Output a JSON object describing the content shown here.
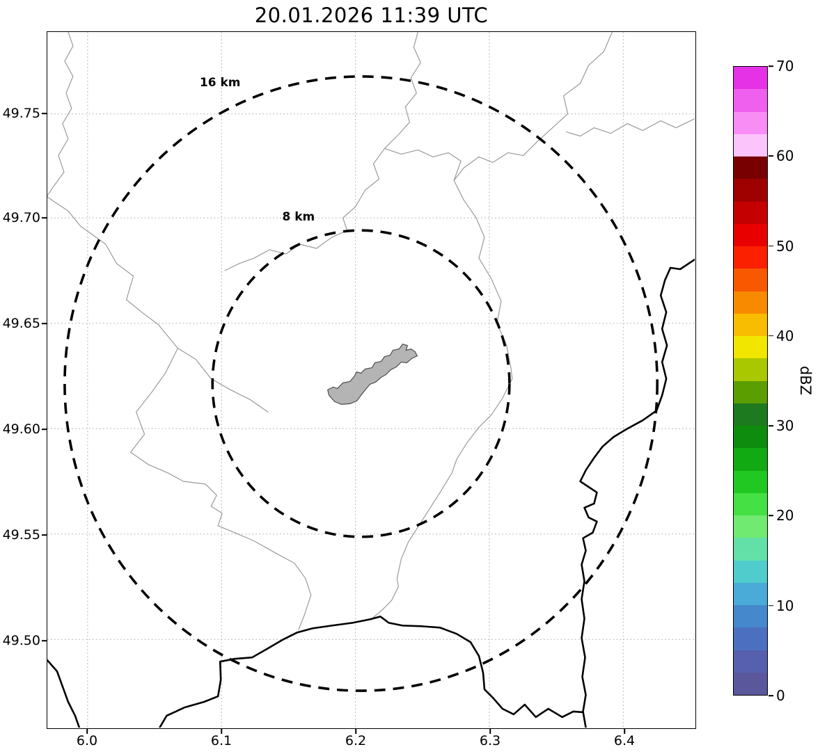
{
  "title": "20.01.2026 11:39 UTC",
  "axes": {
    "x_tick_labels": [
      "6.0",
      "6.1",
      "6.2",
      "6.3",
      "6.4"
    ],
    "y_tick_labels": [
      "49.75",
      "49.70",
      "49.65",
      "49.60",
      "49.55",
      "49.50"
    ]
  },
  "map": {
    "range_rings": [
      {
        "label": "16 km"
      },
      {
        "label": "8 km"
      }
    ],
    "features": {
      "urban_area_fill": "#b4b4b4",
      "boundary_line_color": "#9a9a9a",
      "national_border_color": "#000000",
      "range_ring_color": "#000000"
    }
  },
  "colorbar": {
    "label": "dBZ",
    "min": 0,
    "max": 70,
    "tick_labels_top_to_bottom": [
      "70",
      "60",
      "50",
      "40",
      "30",
      "20",
      "10",
      "0"
    ],
    "band_colors_top_to_bottom": [
      "#e632e6",
      "#f060ee",
      "#f78df5",
      "#fbc4fa",
      "#780000",
      "#9e0000",
      "#c40000",
      "#e80000",
      "#fa2000",
      "#f85800",
      "#f88a00",
      "#f8bc00",
      "#f0e600",
      "#aac800",
      "#5a9e00",
      "#1e7a1e",
      "#0e8c0e",
      "#12aa12",
      "#22c822",
      "#44e044",
      "#70ea70",
      "#62e0a8",
      "#50cccc",
      "#4aaad8",
      "#4688cc",
      "#4c70c0",
      "#5660ae",
      "#5a579c"
    ]
  }
}
